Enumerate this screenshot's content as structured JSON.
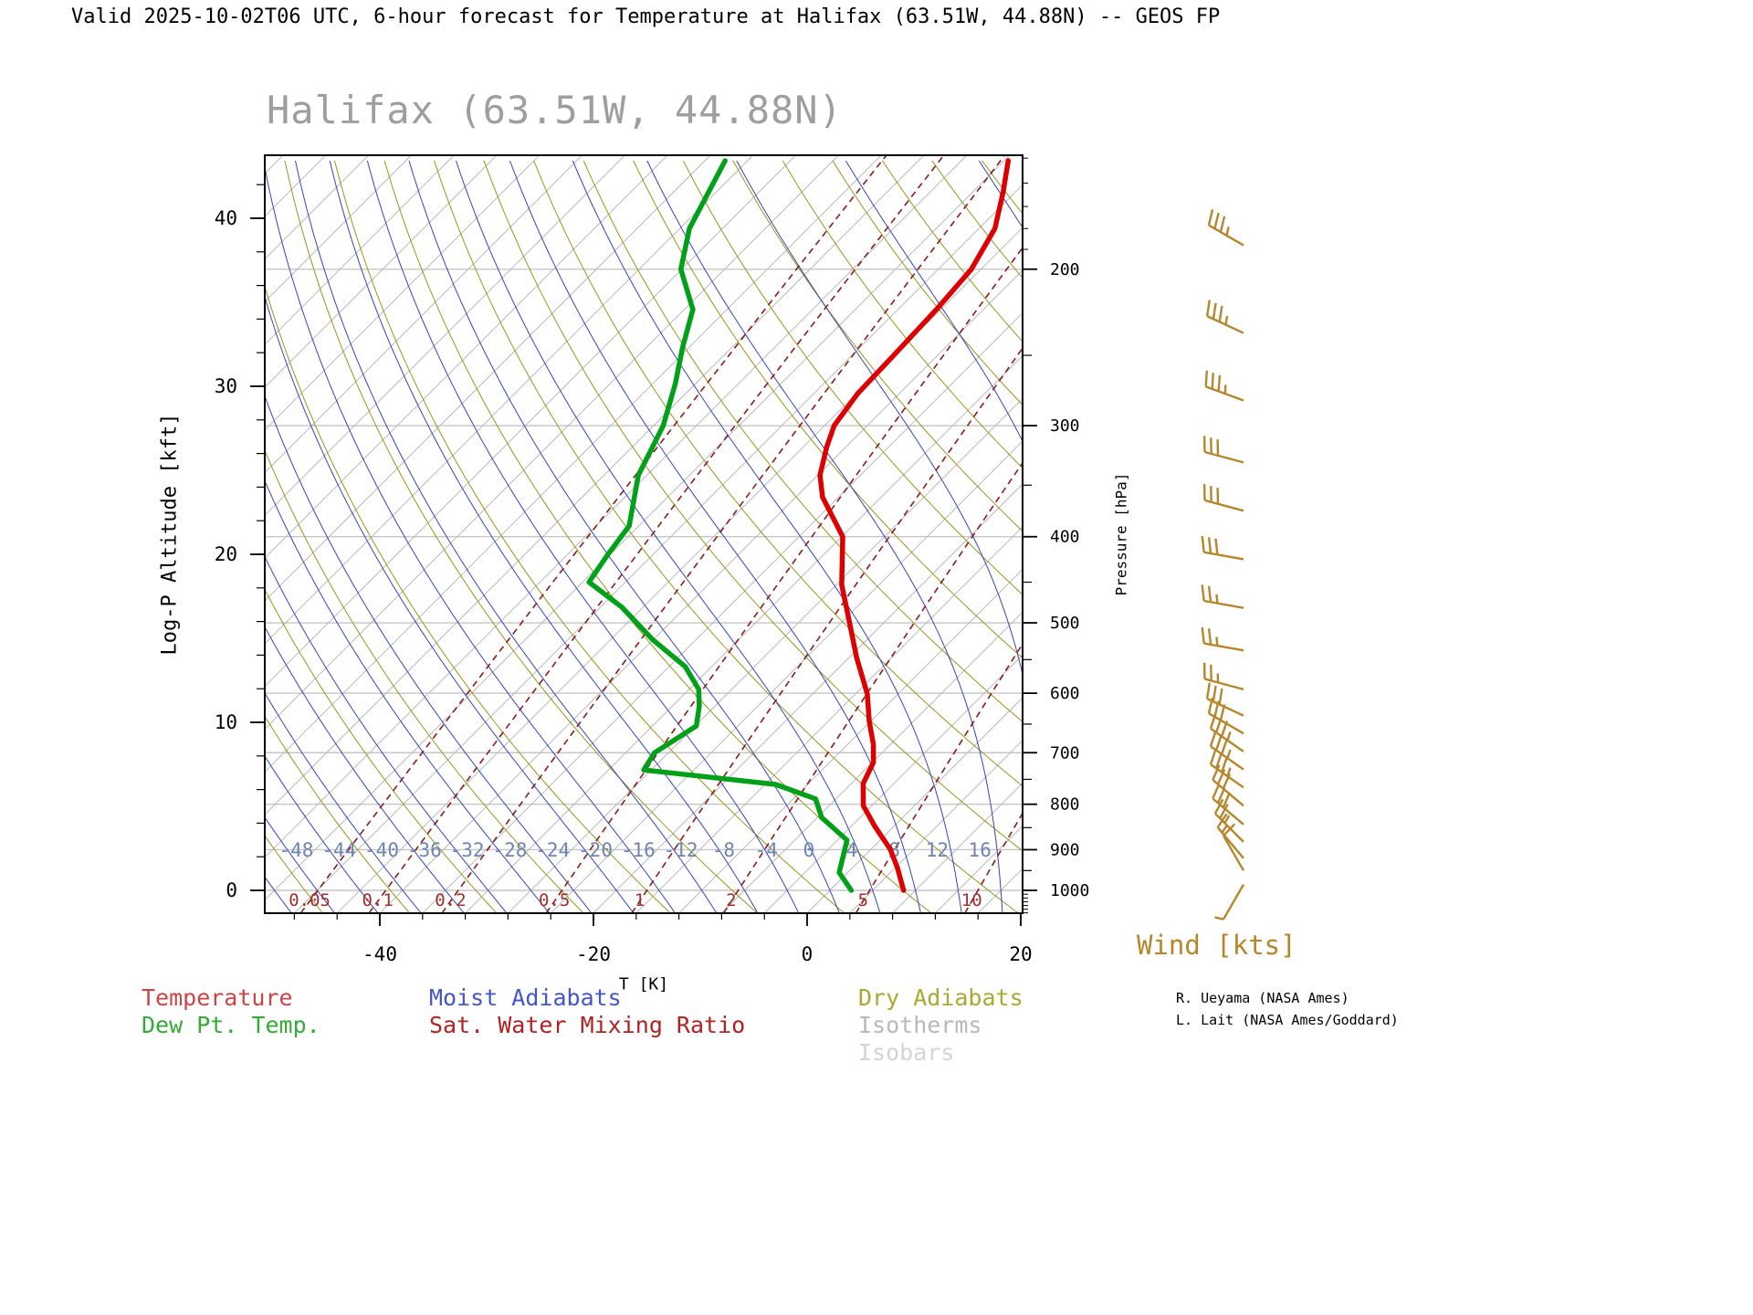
{
  "header": {
    "title": "Valid 2025-10-02T06 UTC, 6-hour forecast for Temperature at Halifax (63.51W, 44.88N) -- GEOS FP"
  },
  "chart_data": {
    "type": "line",
    "subtype": "skew-t-log-p-sounding",
    "title": "Halifax (63.51W, 44.88N)",
    "x_axis": {
      "label": "T [K]",
      "major_ticks": [
        -40,
        -20,
        0,
        20
      ],
      "minor_step": 4,
      "range_c": [
        -50.8,
        20.2
      ]
    },
    "y_axis_left": {
      "label": "Log-P Altitude [kft]",
      "major_ticks": [
        0,
        10,
        20,
        30,
        40
      ],
      "minor_step": 2,
      "max_kft": 43.7
    },
    "y_axis_right": {
      "label": "Pressure [hPa]",
      "major_ticks": [
        200,
        300,
        400,
        500,
        600,
        700,
        800,
        900,
        1000
      ],
      "minor_ticks_50": [
        250,
        350,
        450,
        550,
        650,
        750,
        850,
        950
      ],
      "minor_ticks_10": [
        150,
        160,
        170,
        180,
        190,
        1010,
        1020,
        1030,
        1040,
        1050,
        1060
      ]
    },
    "isotherm_labels": [
      -48,
      -44,
      -40,
      -36,
      -32,
      -28,
      -24,
      -20,
      -16,
      -12,
      -8,
      -4,
      0,
      4,
      8,
      12,
      16
    ],
    "mixing_ratio_labels": [
      0.05,
      0.1,
      0.2,
      0.5,
      1,
      2,
      5,
      10
    ],
    "series": [
      {
        "name": "Temperature",
        "color": "#dd0000",
        "points_p_t": [
          [
            1000,
            6.9
          ],
          [
            943,
            4.2
          ],
          [
            899,
            1.8
          ],
          [
            847,
            -1.8
          ],
          [
            803,
            -4.8
          ],
          [
            758,
            -6.9
          ],
          [
            718,
            -7.9
          ],
          [
            685,
            -9.6
          ],
          [
            646,
            -12.1
          ],
          [
            601,
            -14.9
          ],
          [
            547,
            -19.3
          ],
          [
            500,
            -23.2
          ],
          [
            453,
            -27.5
          ],
          [
            400,
            -31.9
          ],
          [
            361,
            -37.5
          ],
          [
            341,
            -39.8
          ],
          [
            317,
            -41.8
          ],
          [
            300,
            -43.1
          ],
          [
            276,
            -43.9
          ],
          [
            251,
            -44.1
          ],
          [
            222,
            -44.4
          ],
          [
            200,
            -44.9
          ],
          [
            180,
            -46.5
          ],
          [
            164,
            -49.1
          ],
          [
            151,
            -51.6
          ]
        ]
      },
      {
        "name": "Dew Pt. Temp.",
        "color": "#00a018",
        "points_p_t": [
          [
            1000,
            2.0
          ],
          [
            955,
            -0.8
          ],
          [
            931,
            -1.5
          ],
          [
            878,
            -3.1
          ],
          [
            828,
            -7.6
          ],
          [
            789,
            -9.9
          ],
          [
            760,
            -15.0
          ],
          [
            732,
            -28.7
          ],
          [
            700,
            -29.3
          ],
          [
            653,
            -27.9
          ],
          [
            620,
            -29.5
          ],
          [
            594,
            -31.1
          ],
          [
            560,
            -34.5
          ],
          [
            522,
            -40.1
          ],
          [
            480,
            -46.0
          ],
          [
            450,
            -51.4
          ],
          [
            420,
            -52.2
          ],
          [
            389,
            -52.9
          ],
          [
            341,
            -56.8
          ],
          [
            300,
            -59.1
          ],
          [
            269,
            -61.9
          ],
          [
            245,
            -64.6
          ],
          [
            222,
            -67.2
          ],
          [
            200,
            -72.1
          ],
          [
            180,
            -75.1
          ],
          [
            151,
            -78.1
          ]
        ]
      }
    ],
    "wind_barbs": {
      "label": "Wind [kts]",
      "color": "#b5862b",
      "levels_p_spd_dir": [
        [
          188,
          35,
          300
        ],
        [
          236,
          35,
          295
        ],
        [
          281,
          35,
          290
        ],
        [
          330,
          30,
          285
        ],
        [
          374,
          30,
          285
        ],
        [
          424,
          30,
          280
        ],
        [
          481,
          25,
          280
        ],
        [
          537,
          25,
          280
        ],
        [
          594,
          25,
          285
        ],
        [
          636,
          30,
          295
        ],
        [
          666,
          30,
          300
        ],
        [
          698,
          35,
          305
        ],
        [
          731,
          35,
          305
        ],
        [
          766,
          35,
          305
        ],
        [
          803,
          30,
          310
        ],
        [
          843,
          30,
          310
        ],
        [
          882,
          25,
          315
        ],
        [
          920,
          15,
          320
        ],
        [
          950,
          10,
          330
        ],
        [
          985,
          5,
          210
        ]
      ]
    },
    "background": {
      "isobars": [
        200,
        300,
        400,
        500,
        600,
        700,
        800,
        900,
        1000
      ],
      "isotherms": {
        "min": -120,
        "max": 48,
        "step": 4
      },
      "dry_adiabats_theta_k": {
        "min": 216,
        "max": 504,
        "step": 8
      },
      "moist_adiabats_start_c": {
        "min": -52,
        "max": 40,
        "step": 4
      },
      "mixing_ratio_g_kg": [
        0.05,
        0.1,
        0.2,
        0.5,
        1,
        2,
        5,
        10
      ]
    },
    "colors": {
      "temperature": "#dd0000",
      "dew_point": "#00a018",
      "moist_adiabat": "#3344bb",
      "dry_adiabat": "#96961e",
      "isotherm": "#b9b9b9",
      "isobar": "#c6c6c6",
      "mixing_ratio": "#8b1a1a",
      "wind": "#b5862b",
      "frame": "#000000",
      "title": "#9e9e9e",
      "isotherm_label": "#6e84b4",
      "mixing_label": "#9b3030"
    }
  },
  "wind_panel": {
    "label": "Wind [kts]"
  },
  "legend": {
    "temperature": {
      "label": "Temperature",
      "color": "#cc4444"
    },
    "dew_point": {
      "label": "Dew Pt. Temp.",
      "color": "#33aa33"
    },
    "moist_adiabats": {
      "label": "Moist Adiabats",
      "color": "#4455cc"
    },
    "sat_water_mixing_ratio": {
      "label": "Sat. Water Mixing Ratio",
      "color": "#b22222"
    },
    "dry_adiabats": {
      "label": "Dry Adiabats",
      "color": "#a8a832"
    },
    "isotherms": {
      "label": "Isotherms",
      "color": "#b8b8b8"
    },
    "isobars": {
      "label": "Isobars",
      "color": "#d4d4d4"
    }
  },
  "credits": {
    "line1": "R. Ueyama (NASA Ames)",
    "line2": "L. Lait (NASA Ames/Goddard)"
  }
}
